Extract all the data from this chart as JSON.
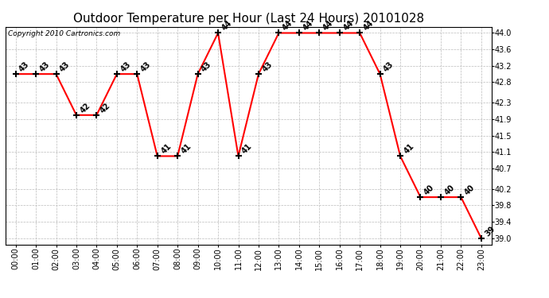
{
  "title": "Outdoor Temperature per Hour (Last 24 Hours) 20101028",
  "copyright": "Copyright 2010 Cartronics.com",
  "hours": [
    "00:00",
    "01:00",
    "02:00",
    "03:00",
    "04:00",
    "05:00",
    "06:00",
    "07:00",
    "08:00",
    "09:00",
    "10:00",
    "11:00",
    "12:00",
    "13:00",
    "14:00",
    "15:00",
    "16:00",
    "17:00",
    "18:00",
    "19:00",
    "20:00",
    "21:00",
    "22:00",
    "23:00"
  ],
  "temps": [
    43,
    43,
    43,
    42,
    42,
    43,
    43,
    41,
    41,
    43,
    44,
    41,
    43,
    44,
    44,
    44,
    44,
    44,
    43,
    41,
    40,
    40,
    40,
    39
  ],
  "line_color": "#ff0000",
  "bg_color": "#ffffff",
  "grid_color": "#bbbbbb",
  "ylim_min": 38.85,
  "ylim_max": 44.15,
  "yticks": [
    39.0,
    39.4,
    39.8,
    40.2,
    40.7,
    41.1,
    41.5,
    41.9,
    42.3,
    42.8,
    43.2,
    43.6,
    44.0
  ],
  "title_fontsize": 11,
  "tick_fontsize": 7,
  "annot_fontsize": 7,
  "copyright_fontsize": 6.5
}
